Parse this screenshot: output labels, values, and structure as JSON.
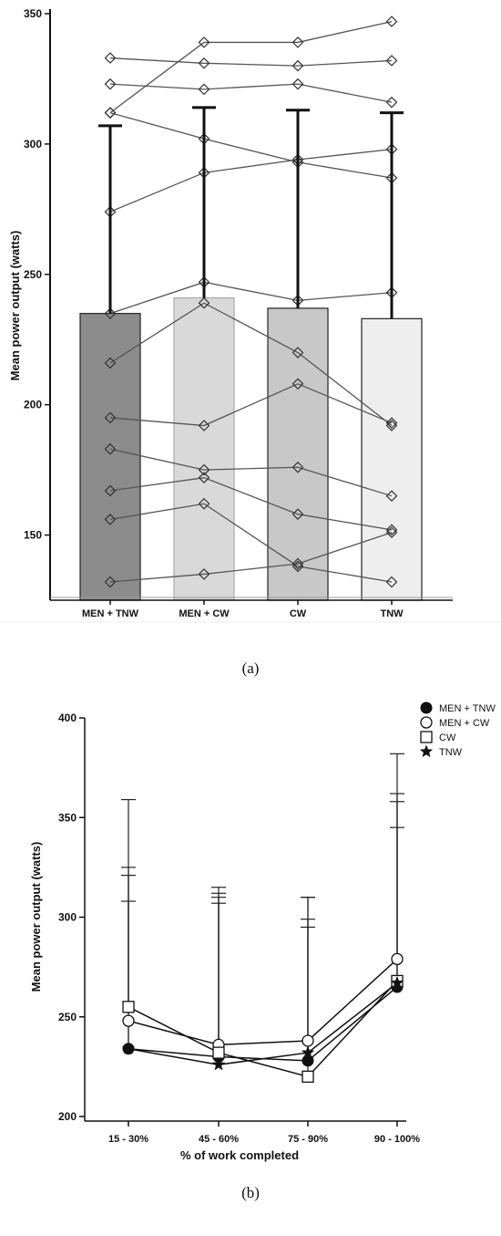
{
  "chart_data": [
    {
      "type": "bar",
      "panel_label": "(a)",
      "ylabel": "Mean power output (watts)",
      "ylim": [
        125,
        350
      ],
      "yticks": [
        "150",
        "200",
        "250",
        "300",
        "350"
      ],
      "categories": [
        "MEN + TNW",
        "MEN + CW",
        "CW",
        "TNW"
      ],
      "bar_colors": [
        "#8c8c8c",
        "#d9d9d9",
        "#c8c8c8",
        "#eeeeee"
      ],
      "values": [
        235,
        241,
        237,
        233
      ],
      "error_upper": [
        307,
        314,
        313,
        312
      ],
      "individual_series": [
        [
          312,
          302,
          293,
          287
        ],
        [
          333,
          331,
          330,
          332
        ],
        [
          323,
          321,
          323,
          316
        ],
        [
          312,
          339,
          339,
          347
        ],
        [
          274,
          289,
          294,
          298
        ],
        [
          235,
          247,
          240,
          243
        ],
        [
          216,
          239,
          220,
          192
        ],
        [
          195,
          192,
          208,
          193
        ],
        [
          183,
          175,
          176,
          165
        ],
        [
          167,
          172,
          158,
          152
        ],
        [
          156,
          162,
          138,
          132
        ],
        [
          132,
          135,
          139,
          151
        ]
      ]
    },
    {
      "type": "line",
      "panel_label": "(b)",
      "ylabel": "Mean power output (watts)",
      "xlabel": "% of work completed",
      "ylim": [
        200,
        400
      ],
      "yticks": [
        "200",
        "250",
        "300",
        "350",
        "400"
      ],
      "categories": [
        "15 - 30%",
        "45 - 60%",
        "75 - 90%",
        "90 - 100%"
      ],
      "legend_position": "top-right",
      "series": [
        {
          "name": "MEN + TNW",
          "marker": "filled-circle",
          "values": [
            234,
            230,
            228,
            265
          ],
          "error_upper": [
            308,
            307,
            295,
            345
          ]
        },
        {
          "name": "MEN + CW",
          "marker": "open-circle",
          "values": [
            248,
            236,
            238,
            279
          ],
          "error_upper": [
            359,
            315,
            310,
            382
          ]
        },
        {
          "name": "CW",
          "marker": "open-square",
          "values": [
            255,
            232,
            220,
            268
          ],
          "error_upper": [
            325,
            312,
            310,
            362
          ]
        },
        {
          "name": "TNW",
          "marker": "star",
          "values": [
            234,
            226,
            232,
            267
          ],
          "error_upper": [
            321,
            310,
            299,
            358
          ]
        }
      ]
    }
  ]
}
